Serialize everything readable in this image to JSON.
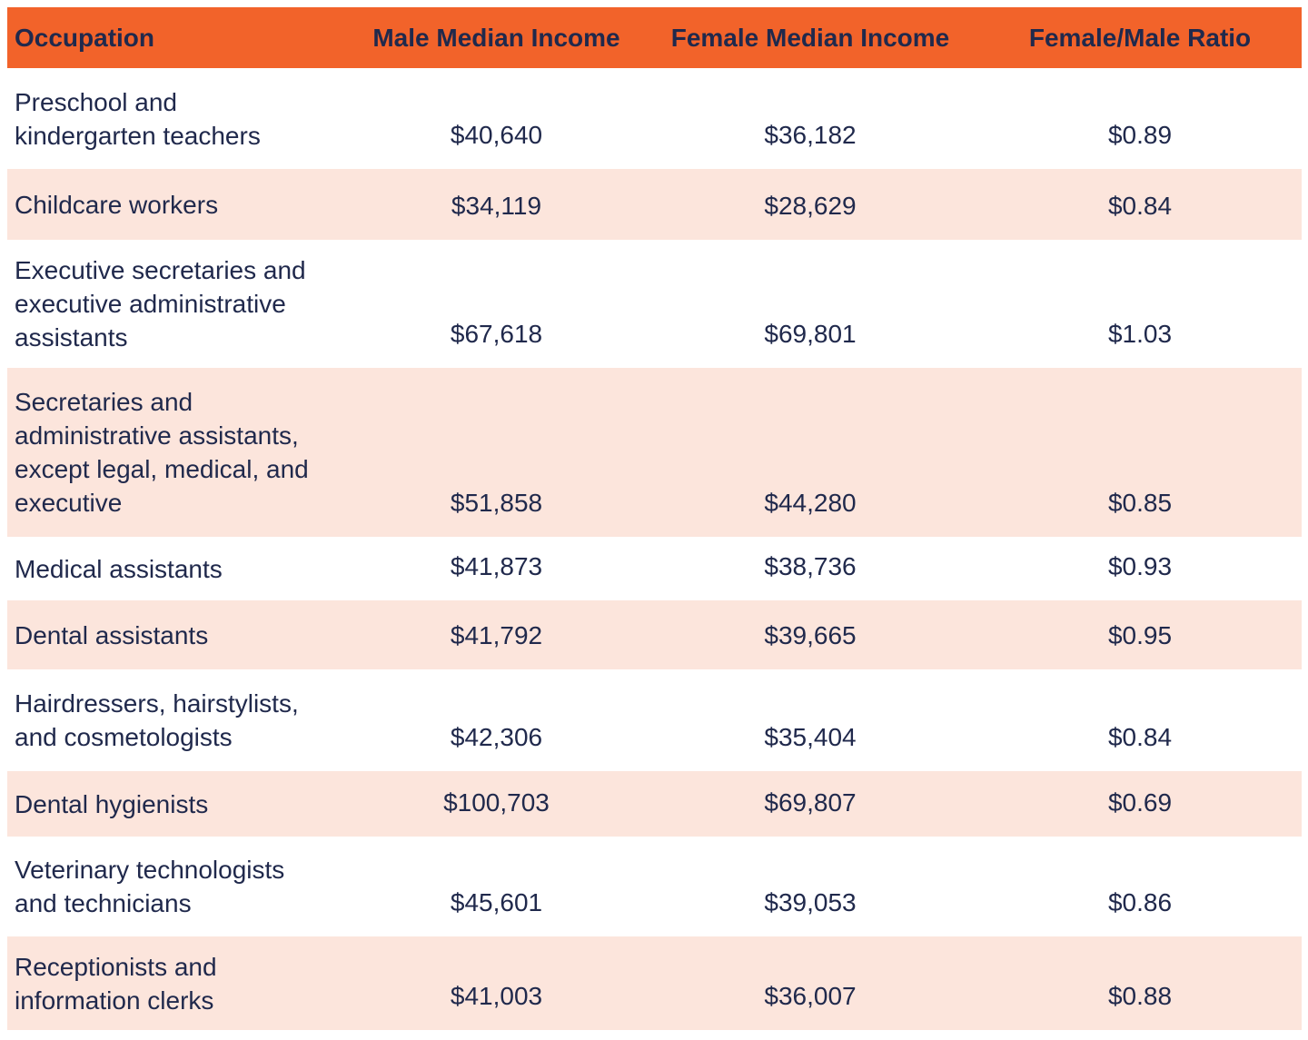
{
  "colors": {
    "header_bg": "#F2632A",
    "alt_row_bg": "#FCE5DC",
    "text": "#20294C",
    "row_bg": "#FFFFFF"
  },
  "table": {
    "columns": [
      "Occupation",
      "Male Median Income",
      "Female Median Income",
      "Female/Male Ratio"
    ],
    "rows": [
      {
        "occupation": "Preschool and\nkindergarten teachers",
        "male": "$40,640",
        "female": "$36,182",
        "ratio": "$0.89"
      },
      {
        "occupation": "Childcare workers",
        "male": "$34,119",
        "female": "$28,629",
        "ratio": "$0.84"
      },
      {
        "occupation": "Executive secretaries and\nexecutive administrative\nassistants",
        "male": "$67,618",
        "female": "$69,801",
        "ratio": "$1.03"
      },
      {
        "occupation": "Secretaries and\nadministrative assistants,\nexcept legal, medical, and\nexecutive",
        "male": "$51,858",
        "female": "$44,280",
        "ratio": "$0.85"
      },
      {
        "occupation": "Medical assistants",
        "male": "$41,873",
        "female": "$38,736",
        "ratio": "$0.93"
      },
      {
        "occupation": "Dental assistants",
        "male": "$41,792",
        "female": "$39,665",
        "ratio": "$0.95"
      },
      {
        "occupation": "Hairdressers, hairstylists,\nand cosmetologists",
        "male": "$42,306",
        "female": "$35,404",
        "ratio": "$0.84"
      },
      {
        "occupation": "Dental hygienists",
        "male": "$100,703",
        "female": "$69,807",
        "ratio": "$0.69"
      },
      {
        "occupation": "Veterinary technologists\nand technicians",
        "male": "$45,601",
        "female": "$39,053",
        "ratio": "$0.86"
      },
      {
        "occupation": "Receptionists and\ninformation clerks",
        "male": "$41,003",
        "female": "$36,007",
        "ratio": "$0.88"
      }
    ]
  },
  "chart_data": {
    "type": "table",
    "columns": [
      "Occupation",
      "Male Median Income",
      "Female Median Income",
      "Female/Male Ratio"
    ],
    "rows": [
      [
        "Preschool and kindergarten teachers",
        40640,
        36182,
        0.89
      ],
      [
        "Childcare workers",
        34119,
        28629,
        0.84
      ],
      [
        "Executive secretaries and executive administrative assistants",
        67618,
        69801,
        1.03
      ],
      [
        "Secretaries and administrative assistants, except legal, medical, and executive",
        51858,
        44280,
        0.85
      ],
      [
        "Medical assistants",
        41873,
        38736,
        0.93
      ],
      [
        "Dental assistants",
        41792,
        39665,
        0.95
      ],
      [
        "Hairdressers, hairstylists, and cosmetologists",
        42306,
        35404,
        0.84
      ],
      [
        "Dental hygienists",
        100703,
        69807,
        0.69
      ],
      [
        "Veterinary technologists and technicians",
        45601,
        39053,
        0.86
      ],
      [
        "Receptionists and information clerks",
        41003,
        36007,
        0.88
      ]
    ],
    "layout_hints": {
      "header_background": "#F2632A",
      "alternating_row_background": "#FCE5DC",
      "numeric_columns_alignment": "center",
      "occupation_column_alignment": "left"
    }
  }
}
